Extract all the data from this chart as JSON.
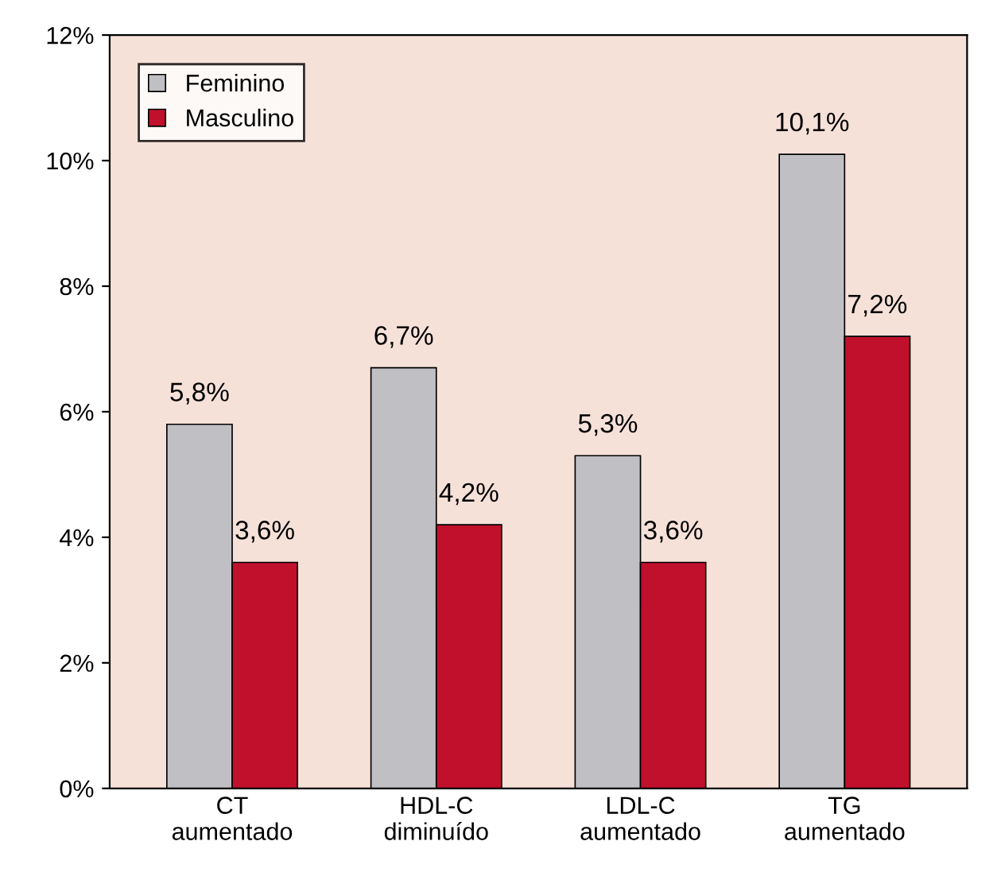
{
  "chart_data": {
    "type": "bar",
    "categories": [
      "CT\naumentado",
      "HDL-C\ndiminuído",
      "LDL-C\naumentado",
      "TG\naumentado"
    ],
    "series": [
      {
        "name": "Feminino",
        "color": "#c0c0c4",
        "values": [
          5.8,
          6.7,
          5.3,
          10.1
        ],
        "value_labels": [
          "5,8%",
          "6,7%",
          "5,3%",
          "10,1%"
        ]
      },
      {
        "name": "Masculino",
        "color": "#c0102c",
        "values": [
          3.6,
          4.2,
          3.6,
          7.2
        ],
        "value_labels": [
          "3,6%",
          "4,2%",
          "3,6%",
          "7,2%"
        ]
      }
    ],
    "ylim": [
      0,
      12
    ],
    "yticks": [
      {
        "value": 0,
        "label": "0%"
      },
      {
        "value": 2,
        "label": "2%"
      },
      {
        "value": 4,
        "label": "4%"
      },
      {
        "value": 6,
        "label": "6%"
      },
      {
        "value": 8,
        "label": "8%"
      },
      {
        "value": 10,
        "label": "10%"
      },
      {
        "value": 12,
        "label": "12%"
      }
    ],
    "grid": false,
    "legend": "top left"
  }
}
